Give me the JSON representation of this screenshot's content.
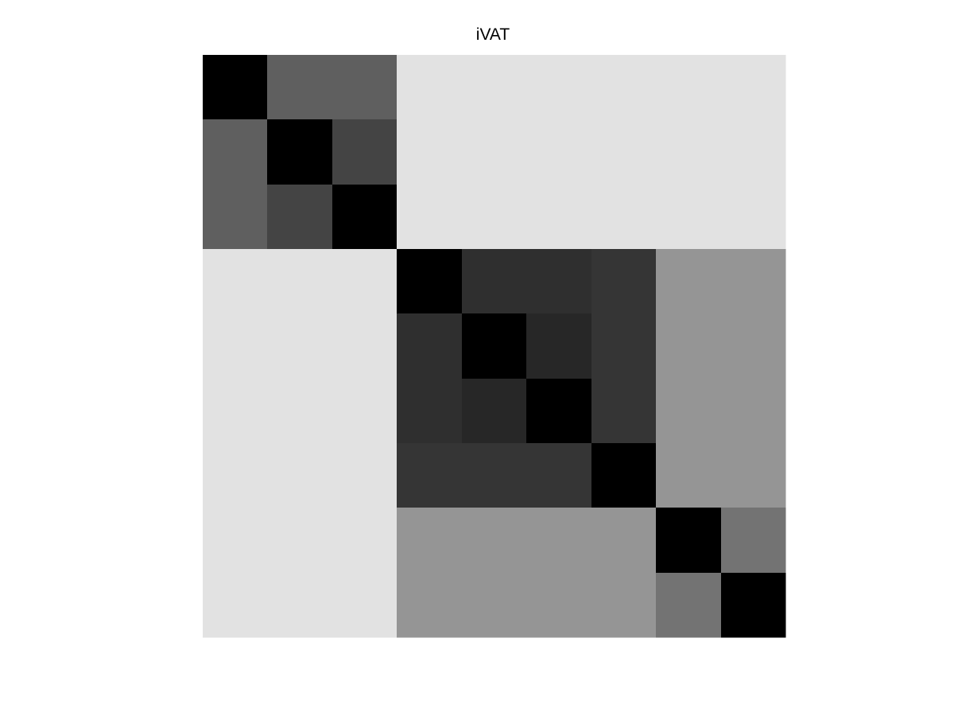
{
  "chart_data": {
    "type": "heatmap",
    "title": "iVAT",
    "colormap": "gray",
    "grid": false,
    "axes_visible": false,
    "n": 9,
    "cell_gray_levels": [
      [
        0,
        95,
        95,
        226,
        226,
        226,
        226,
        226,
        226
      ],
      [
        95,
        0,
        68,
        226,
        226,
        226,
        226,
        226,
        226
      ],
      [
        95,
        68,
        0,
        226,
        226,
        226,
        226,
        226,
        226
      ],
      [
        226,
        226,
        226,
        0,
        47,
        47,
        53,
        149,
        149
      ],
      [
        226,
        226,
        226,
        47,
        0,
        39,
        53,
        149,
        149
      ],
      [
        226,
        226,
        226,
        47,
        39,
        0,
        53,
        149,
        149
      ],
      [
        226,
        226,
        226,
        53,
        53,
        53,
        0,
        149,
        149
      ],
      [
        226,
        226,
        226,
        149,
        149,
        149,
        149,
        0,
        115
      ],
      [
        226,
        226,
        226,
        149,
        149,
        149,
        149,
        115,
        0
      ]
    ]
  }
}
